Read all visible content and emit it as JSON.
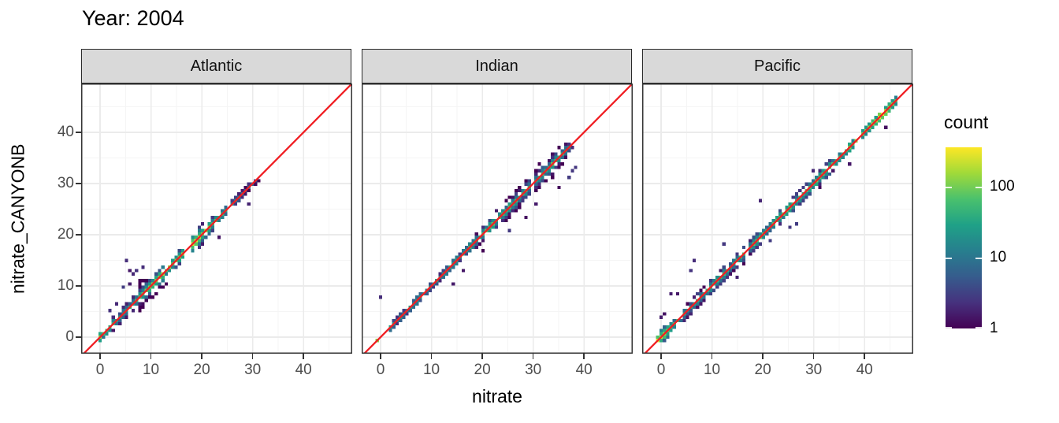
{
  "title": "Year: 2004",
  "legend": {
    "title": "count",
    "ticks": [
      100,
      10,
      1
    ],
    "max_count": 360
  },
  "colors": {
    "red_line": "#f01e23",
    "panel_border": "#333333",
    "grid_major": "#ebebeb",
    "grid_minor": "#f5f5f5",
    "strip_bg": "#d9d9d9",
    "axis_text": "#4d4d4d",
    "viridis_stops": [
      "#440154",
      "#46327e",
      "#365c8d",
      "#277f8e",
      "#1fa187",
      "#4ac16d",
      "#a0da39",
      "#fde725"
    ]
  },
  "chart_data": {
    "type": "heatmap",
    "subtype": "bin2d-scatter-density",
    "title": "Year: 2004",
    "xlabel": "nitrate",
    "ylabel": "nitrate_CANYONB",
    "x_ticks": [
      0,
      10,
      20,
      30,
      40
    ],
    "y_ticks": [
      0,
      10,
      20,
      30,
      40
    ],
    "minor_ticks": [
      5,
      15,
      25,
      35,
      45
    ],
    "xlim": [
      -3.7,
      49.6
    ],
    "ylim": [
      -3.2,
      49.5
    ],
    "grid": true,
    "legend_position": "right",
    "reference_line": {
      "type": "identity",
      "slope": 1,
      "intercept": 0
    },
    "color_scale": {
      "name": "viridis",
      "trans": "log10",
      "limits": [
        1,
        360
      ],
      "legend_title": "count",
      "legend_ticks": [
        100,
        10,
        1
      ]
    },
    "facets": [
      {
        "facet": "Atlantic",
        "binwidth": 0.65,
        "seed": 7,
        "diagonal_extent": [
          -0.7,
          30.8
        ],
        "count_profile": [
          [
            -0.7,
            150
          ],
          [
            1,
            60
          ],
          [
            3,
            35
          ],
          [
            5,
            45
          ],
          [
            7,
            55
          ],
          [
            9,
            70
          ],
          [
            11,
            110
          ],
          [
            13,
            150
          ],
          [
            15,
            120
          ],
          [
            17,
            160
          ],
          [
            19,
            210
          ],
          [
            20.5,
            160
          ],
          [
            22,
            80
          ],
          [
            24,
            40
          ],
          [
            26,
            15
          ],
          [
            28,
            8
          ],
          [
            30.8,
            5
          ]
        ],
        "spread_profile": [
          [
            -0.7,
            1
          ],
          [
            2,
            1
          ],
          [
            5,
            2
          ],
          [
            8,
            3
          ],
          [
            11,
            2
          ],
          [
            14,
            2
          ],
          [
            17,
            2
          ],
          [
            20,
            3
          ],
          [
            23,
            2
          ],
          [
            26,
            1
          ],
          [
            30.8,
            1
          ]
        ],
        "outliers": [
          [
            5.2,
            14.8
          ],
          [
            5.8,
            13.2
          ],
          [
            6.4,
            12.4
          ],
          [
            7.1,
            13.0
          ],
          [
            4.5,
            9.8
          ],
          [
            6.0,
            10.4
          ],
          [
            7.8,
            11.2
          ],
          [
            8.4,
            13.5
          ],
          [
            3.2,
            6.8
          ],
          [
            12.2,
            9.6
          ],
          [
            13.0,
            10.2
          ],
          [
            29.3,
            26.2
          ],
          [
            23.5,
            19.8
          ],
          [
            2.0,
            5.2
          ]
        ]
      },
      {
        "facet": "Indian",
        "binwidth": 0.65,
        "seed": 13,
        "diagonal_extent": [
          -0.6,
          37.2
        ],
        "count_profile": [
          [
            -0.6,
            140
          ],
          [
            1,
            40
          ],
          [
            3,
            28
          ],
          [
            6,
            22
          ],
          [
            9,
            25
          ],
          [
            12,
            28
          ],
          [
            15,
            30
          ],
          [
            18,
            40
          ],
          [
            21,
            55
          ],
          [
            24,
            65
          ],
          [
            26,
            55
          ],
          [
            28,
            45
          ],
          [
            30,
            50
          ],
          [
            32,
            60
          ],
          [
            34,
            70
          ],
          [
            35.5,
            60
          ],
          [
            37.2,
            25
          ]
        ],
        "spread_profile": [
          [
            -0.6,
            1
          ],
          [
            3,
            1
          ],
          [
            7,
            1
          ],
          [
            11,
            1
          ],
          [
            15,
            1
          ],
          [
            19,
            2
          ],
          [
            23,
            2
          ],
          [
            26,
            3
          ],
          [
            29,
            3
          ],
          [
            32,
            4
          ],
          [
            35,
            3
          ],
          [
            37.2,
            2
          ]
        ],
        "outliers": [
          [
            -0.2,
            7.9
          ],
          [
            14.3,
            10.6
          ],
          [
            20.3,
            16.6
          ],
          [
            25.2,
            20.8
          ],
          [
            38.6,
            33.4
          ],
          [
            36.8,
            31.0
          ],
          [
            37.5,
            32.2
          ],
          [
            35.2,
            29.4
          ],
          [
            28.8,
            23.4
          ],
          [
            16.4,
            13.0
          ],
          [
            22.6,
            25.0
          ],
          [
            30.4,
            26.0
          ]
        ]
      },
      {
        "facet": "Pacific",
        "binwidth": 0.65,
        "seed": 21,
        "diagonal_extent": [
          -0.8,
          46.2
        ],
        "count_profile": [
          [
            -0.8,
            330
          ],
          [
            0.5,
            120
          ],
          [
            2,
            45
          ],
          [
            4,
            35
          ],
          [
            7,
            38
          ],
          [
            10,
            42
          ],
          [
            13,
            45
          ],
          [
            16,
            50
          ],
          [
            19,
            55
          ],
          [
            22,
            60
          ],
          [
            25,
            65
          ],
          [
            28,
            70
          ],
          [
            31,
            75
          ],
          [
            34,
            85
          ],
          [
            37,
            95
          ],
          [
            40,
            130
          ],
          [
            42,
            200
          ],
          [
            43.5,
            260
          ],
          [
            45,
            150
          ],
          [
            46.2,
            60
          ]
        ],
        "spread_profile": [
          [
            -0.8,
            2
          ],
          [
            2,
            2
          ],
          [
            5,
            2
          ],
          [
            8,
            2
          ],
          [
            12,
            2
          ],
          [
            16,
            2
          ],
          [
            20,
            2
          ],
          [
            24,
            2
          ],
          [
            28,
            2
          ],
          [
            32,
            2
          ],
          [
            36,
            1
          ],
          [
            40,
            1
          ],
          [
            43,
            1
          ],
          [
            46.2,
            1
          ]
        ],
        "outliers": [
          [
            5.6,
            13.2
          ],
          [
            6.8,
            14.8
          ],
          [
            2.2,
            8.4
          ],
          [
            3.0,
            8.4
          ],
          [
            0.2,
            4.2
          ],
          [
            0.8,
            4.8
          ],
          [
            12.4,
            18.2
          ],
          [
            19.8,
            26.4
          ],
          [
            29.8,
            32.8
          ],
          [
            25.4,
            21.6
          ],
          [
            26.8,
            22.4
          ],
          [
            21.4,
            18.8
          ],
          [
            36.8,
            33.6
          ],
          [
            44.2,
            40.8
          ],
          [
            15.2,
            12.0
          ]
        ]
      }
    ]
  }
}
